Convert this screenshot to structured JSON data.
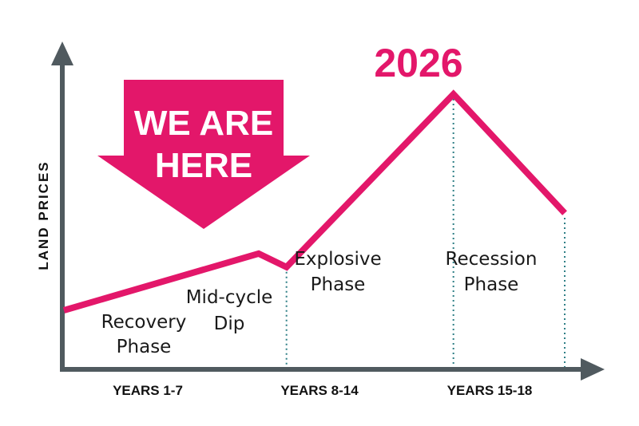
{
  "chart_data": {
    "type": "line",
    "ylabel": "LAND PRICES",
    "x_ticks": [
      "YEARS 1-7",
      "YEARS 8-14",
      "YEARS 15-18"
    ],
    "series": [
      {
        "values": [
          {
            "year": 0,
            "price": 20
          },
          {
            "year": 7,
            "price": 41
          },
          {
            "year": 8,
            "price": 36
          },
          {
            "year": 14,
            "price": 100
          },
          {
            "year": 18,
            "price": 56
          }
        ]
      }
    ],
    "phases": [
      {
        "lines": [
          "Recovery",
          "Phase"
        ]
      },
      {
        "lines": [
          "Mid-cycle",
          "Dip"
        ]
      },
      {
        "lines": [
          "Explosive",
          "Phase"
        ]
      },
      {
        "lines": [
          "Recession",
          "Phase"
        ]
      }
    ],
    "peak_label": "2026",
    "callout": [
      "WE ARE",
      "HERE"
    ],
    "colors": {
      "line": "#e3176a",
      "axis": "#505a5f",
      "guide": "#2f7f86",
      "text": "#1a1a1a"
    }
  }
}
